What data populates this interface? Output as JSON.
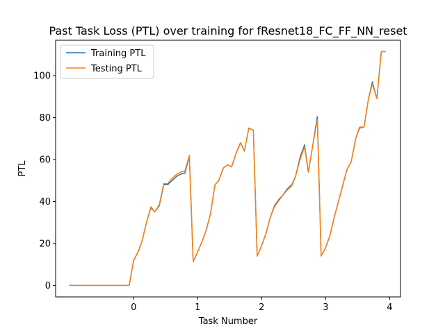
{
  "chart_data": {
    "type": "line",
    "title": "Past Task Loss (PTL) over training for fResnet18_FC_FF_NN_reset",
    "xlabel": "Task Number",
    "ylabel": "PTL",
    "xlim": [
      -1.22,
      4.17
    ],
    "ylim": [
      -5.5,
      116.9
    ],
    "xticks": [
      0,
      1,
      2,
      3,
      4
    ],
    "yticks": [
      0,
      20,
      40,
      60,
      80,
      100
    ],
    "legend_position": "upper-left",
    "grid": false,
    "series": [
      {
        "name": "Training PTL",
        "color": "#1f77b4",
        "x": [
          -1.0,
          -0.9,
          -0.8,
          -0.7,
          -0.6,
          -0.5,
          -0.4,
          -0.3,
          -0.2,
          -0.1,
          -0.07,
          0.0,
          0.07,
          0.13,
          0.2,
          0.27,
          0.33,
          0.4,
          0.47,
          0.53,
          0.6,
          0.67,
          0.73,
          0.8,
          0.87,
          0.93,
          1.0,
          1.07,
          1.13,
          1.2,
          1.27,
          1.33,
          1.4,
          1.47,
          1.53,
          1.6,
          1.67,
          1.73,
          1.8,
          1.87,
          1.93,
          2.0,
          2.07,
          2.13,
          2.2,
          2.27,
          2.33,
          2.4,
          2.47,
          2.53,
          2.6,
          2.67,
          2.73,
          2.8,
          2.87,
          2.93,
          3.0,
          3.07,
          3.13,
          3.2,
          3.27,
          3.33,
          3.4,
          3.47,
          3.53,
          3.6,
          3.67,
          3.73,
          3.8,
          3.87,
          3.93
        ],
        "y": [
          0,
          0,
          0,
          0,
          0,
          0,
          0,
          0,
          0,
          0,
          0,
          12,
          16,
          21,
          30,
          37,
          35,
          38,
          48,
          48,
          50,
          52,
          53,
          53.5,
          61.5,
          11.3,
          16,
          21,
          26,
          34,
          48,
          50,
          56,
          57.5,
          56.5,
          63,
          68,
          64,
          75,
          74,
          14,
          19,
          25,
          32,
          38,
          41,
          43,
          46,
          48,
          52,
          61,
          67,
          54,
          67,
          80.5,
          14,
          18,
          24,
          32,
          40,
          48,
          55,
          59,
          70,
          75,
          75.5,
          89,
          97,
          89,
          111.5,
          111.5
        ]
      },
      {
        "name": "Testing PTL",
        "color": "#ff7f0e",
        "x": [
          -1.0,
          -0.9,
          -0.8,
          -0.7,
          -0.6,
          -0.5,
          -0.4,
          -0.3,
          -0.2,
          -0.1,
          -0.07,
          0.0,
          0.07,
          0.13,
          0.2,
          0.27,
          0.33,
          0.4,
          0.47,
          0.53,
          0.6,
          0.67,
          0.73,
          0.8,
          0.87,
          0.93,
          1.0,
          1.07,
          1.13,
          1.2,
          1.27,
          1.33,
          1.4,
          1.47,
          1.53,
          1.6,
          1.67,
          1.73,
          1.8,
          1.87,
          1.93,
          2.0,
          2.07,
          2.13,
          2.2,
          2.27,
          2.33,
          2.4,
          2.47,
          2.53,
          2.6,
          2.67,
          2.73,
          2.8,
          2.87,
          2.93,
          3.0,
          3.07,
          3.13,
          3.2,
          3.27,
          3.33,
          3.4,
          3.47,
          3.53,
          3.6,
          3.67,
          3.73,
          3.8,
          3.87,
          3.93
        ],
        "y": [
          0,
          0,
          0,
          0,
          0,
          0,
          0,
          0,
          0,
          0,
          0,
          12,
          16,
          21,
          30,
          37.5,
          35,
          38.5,
          48.5,
          48.5,
          51,
          53,
          54,
          54.5,
          62,
          11.3,
          16,
          21,
          26,
          34,
          48,
          50,
          56,
          57.5,
          56.5,
          63,
          68,
          64,
          75,
          74,
          14,
          19,
          25,
          32,
          37.5,
          40.5,
          43,
          45.5,
          47.5,
          52,
          60,
          66,
          54,
          67,
          79,
          14,
          18,
          24,
          32,
          40,
          48,
          55,
          59,
          70,
          75.5,
          75.5,
          89,
          96,
          89,
          111.5,
          111.5
        ]
      }
    ]
  }
}
